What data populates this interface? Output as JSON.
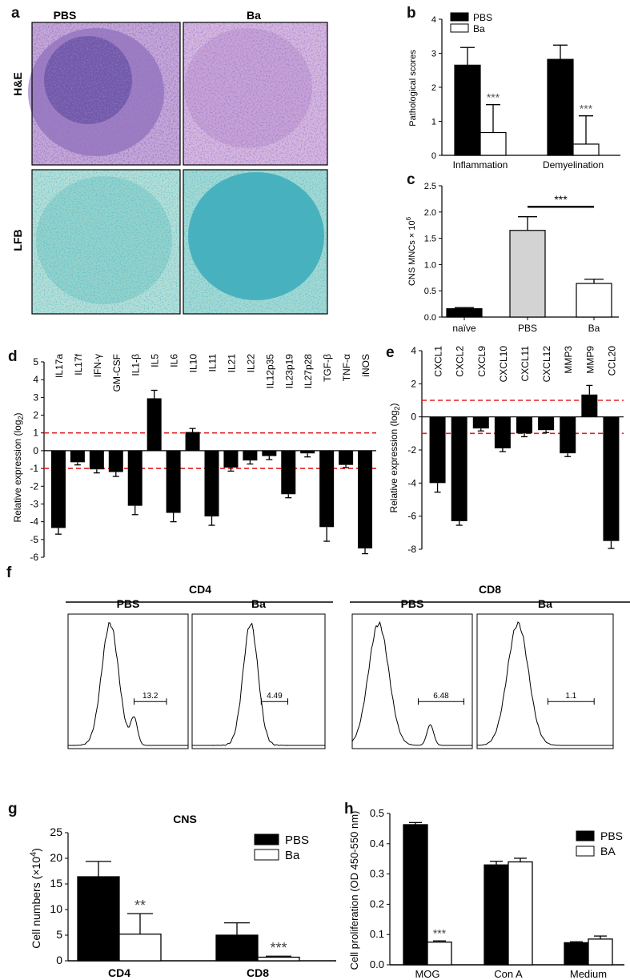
{
  "panel_letters": {
    "a": "a",
    "b": "b",
    "c": "c",
    "d": "d",
    "e": "e",
    "f": "f",
    "g": "g",
    "h": "h"
  },
  "panel_a": {
    "col_labels": [
      "PBS",
      "Ba"
    ],
    "row_labels": [
      "H&E",
      "LFB"
    ],
    "colors": {
      "he_bg": "#c9a8d8",
      "he_dark": "#3b2c8a",
      "lfb_bg": "#9fd6d0",
      "lfb_dark": "#2aa3b5"
    }
  },
  "chart_data": [
    {
      "id": "b",
      "type": "bar",
      "categories": [
        "Inflammation",
        "Demyelination"
      ],
      "series": [
        {
          "name": "PBS",
          "values": [
            2.65,
            2.82
          ],
          "errors": [
            0.52,
            0.42
          ],
          "fill": "#000000"
        },
        {
          "name": "Ba",
          "values": [
            0.67,
            0.33
          ],
          "errors": [
            0.82,
            0.83
          ],
          "fill": "#ffffff"
        }
      ],
      "annotations": [
        "***",
        "***"
      ],
      "ylabel": "Pathological scores",
      "ylim": [
        0,
        4
      ],
      "yticks": [
        "0",
        "1",
        "2",
        "3",
        "4"
      ],
      "legend": "top-left"
    },
    {
      "id": "c",
      "type": "bar",
      "categories": [
        "naïve",
        "PBS",
        "Ba"
      ],
      "values": [
        0.16,
        1.65,
        0.64
      ],
      "errors": [
        0.02,
        0.26,
        0.08
      ],
      "fills": [
        "#000000",
        "#d3d3d3",
        "#ffffff"
      ],
      "ylabel": "CNS MNCs × 10",
      "ylabel_sup": "6",
      "ylim": [
        0,
        2.5
      ],
      "yticks": [
        "0.0",
        "0.5",
        "1.0",
        "1.5",
        "2.0",
        "2.5"
      ],
      "annotation": "***"
    },
    {
      "id": "d",
      "type": "bar",
      "categories": [
        "IL17a",
        "IL17f",
        "IFN-γ",
        "GM-CSF",
        "IL1-β",
        "IL5",
        "IL6",
        "IL10",
        "IL11",
        "IL21",
        "IL22",
        "IL12p35",
        "IL23p19",
        "IL27p28",
        "TGF-β",
        "TNF-α",
        "iNOS"
      ],
      "values": [
        -4.35,
        -0.65,
        -1.05,
        -1.2,
        -3.1,
        2.95,
        -3.5,
        1.05,
        -3.7,
        -0.95,
        -0.55,
        -0.3,
        -2.45,
        -0.15,
        -4.3,
        -0.8,
        -5.5
      ],
      "errors": [
        0.35,
        0.15,
        0.2,
        0.25,
        0.5,
        0.45,
        0.5,
        0.2,
        0.5,
        0.2,
        0.2,
        0.2,
        0.2,
        0.2,
        0.8,
        0.15,
        0.3
      ],
      "ylabel": "Relative expression (log",
      "ylabel_sub": "2",
      "ylabel_end": ")",
      "ylim": [
        -6,
        5
      ],
      "yticks": [
        "-6",
        "-5",
        "-4",
        "-3",
        "-2",
        "-1",
        "0",
        "1",
        "2",
        "3",
        "4",
        "5"
      ],
      "thresholds": [
        1,
        -1
      ]
    },
    {
      "id": "e",
      "type": "bar",
      "categories": [
        "CXCL1",
        "CXCL2",
        "CXCL9",
        "CXCL10",
        "CXCL11",
        "CXCL12",
        "MMP3",
        "MMP9",
        "CCL20"
      ],
      "values": [
        -4.0,
        -6.3,
        -0.7,
        -1.9,
        -1.0,
        -0.8,
        -2.2,
        1.35,
        -7.5
      ],
      "errors": [
        0.55,
        0.25,
        0.15,
        0.2,
        0.2,
        0.15,
        0.2,
        0.55,
        0.45
      ],
      "ylabel": "Relative expression (log",
      "ylabel_sub": "2",
      "ylabel_end": ")",
      "ylim": [
        -8,
        4
      ],
      "yticks": [
        "-8",
        "-6",
        "-4",
        "-2",
        "0",
        "2",
        "4"
      ],
      "thresholds": [
        1,
        -1
      ]
    },
    {
      "id": "g",
      "type": "bar",
      "title": "CNS",
      "categories": [
        "CD4",
        "CD8"
      ],
      "series": [
        {
          "name": "PBS",
          "values": [
            16.4,
            5.0
          ],
          "errors": [
            3.0,
            2.4
          ],
          "fill": "#000000"
        },
        {
          "name": "Ba",
          "values": [
            5.2,
            0.7
          ],
          "errors": [
            4.0,
            0.2
          ],
          "fill": "#ffffff"
        }
      ],
      "annotations": [
        "**",
        "***"
      ],
      "ylabel": "Cell numbers (×10",
      "ylabel_sup": "4",
      "ylabel_end": ")",
      "ylim": [
        0,
        25
      ],
      "yticks": [
        "0",
        "5",
        "10",
        "15",
        "20",
        "25"
      ],
      "legend": "top-right"
    },
    {
      "id": "h",
      "type": "bar",
      "categories": [
        "MOG",
        "Con A",
        "Medium"
      ],
      "series": [
        {
          "name": "PBS",
          "values": [
            0.463,
            0.33,
            0.073
          ],
          "errors": [
            0.007,
            0.012,
            0.003
          ],
          "fill": "#000000"
        },
        {
          "name": "BA",
          "values": [
            0.075,
            0.34,
            0.085
          ],
          "errors": [
            0.004,
            0.012,
            0.01
          ],
          "fill": "#ffffff"
        }
      ],
      "annotations": [
        "***",
        "",
        ""
      ],
      "ylabel": "Cell proliferation (OD 450-550 nm)",
      "ylim": [
        0,
        0.5
      ],
      "yticks": [
        "0.0",
        "0.1",
        "0.2",
        "0.3",
        "0.4",
        "0.5"
      ],
      "legend": "top-right"
    }
  ],
  "panel_f": {
    "groups": [
      "CD4",
      "CD8"
    ],
    "subtitles": [
      "PBS",
      "Ba",
      "PBS",
      "Ba"
    ],
    "gate_values": [
      "13.2",
      "4.49",
      "6.48",
      "1.1"
    ]
  }
}
